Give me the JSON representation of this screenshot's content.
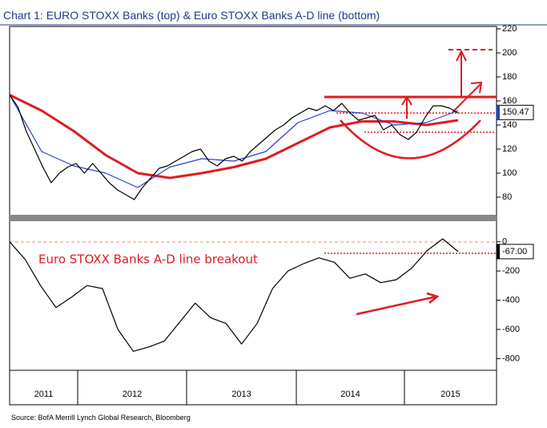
{
  "chart_data": {
    "type": "line",
    "title": "Chart 1: EURO STOXX Banks (top) & Euro STOXX Banks A-D line (bottom)",
    "source": "Source: BofA Merrill Lynch Global Research, Bloomberg",
    "x_labels": [
      "2011",
      "2012",
      "2013",
      "2014",
      "2015"
    ],
    "top": {
      "ylim": [
        68,
        222
      ],
      "yticks": [
        80,
        100,
        120,
        140,
        160,
        180,
        200,
        220
      ],
      "last_value": 150.47,
      "series": [
        {
          "color": "#e01b22",
          "width": 3,
          "values": [
            165,
            152,
            135,
            115,
            100,
            96,
            100,
            105,
            112,
            125,
            138,
            143,
            143,
            140,
            144
          ]
        },
        {
          "color": "#2b3fd1",
          "width": 1.2,
          "values": [
            165,
            118,
            106,
            100,
            88,
            105,
            112,
            110,
            118,
            142,
            152,
            150,
            140,
            142,
            152
          ]
        },
        {
          "color": "#000000",
          "width": 1.2,
          "values": [
            165,
            155,
            135,
            120,
            105,
            92,
            100,
            105,
            108,
            100,
            108,
            100,
            92,
            86,
            82,
            78,
            88,
            96,
            104,
            106,
            110,
            114,
            118,
            120,
            110,
            106,
            112,
            114,
            110,
            118,
            124,
            130,
            136,
            140,
            146,
            150,
            154,
            152,
            156,
            152,
            158,
            150,
            144,
            146,
            148,
            136,
            140,
            132,
            128,
            134,
            146,
            156,
            156,
            154,
            150
          ]
        }
      ]
    },
    "bottom": {
      "ylim": [
        -880,
        130
      ],
      "yticks": [
        0,
        -200,
        -400,
        -600,
        -800
      ],
      "last_value": {
        "value": -67,
        "label": "-67.00"
      },
      "annotation": "Euro STOXX Banks A-D line breakout",
      "series": [
        {
          "color": "#000000",
          "width": 1.2,
          "values": [
            0,
            -120,
            -300,
            -450,
            -380,
            -300,
            -320,
            -600,
            -750,
            -720,
            -680,
            -550,
            -420,
            -520,
            -560,
            -700,
            -560,
            -320,
            -200,
            -150,
            -110,
            -140,
            -250,
            -220,
            -280,
            -260,
            -180,
            -60,
            20,
            -67
          ]
        }
      ]
    }
  }
}
